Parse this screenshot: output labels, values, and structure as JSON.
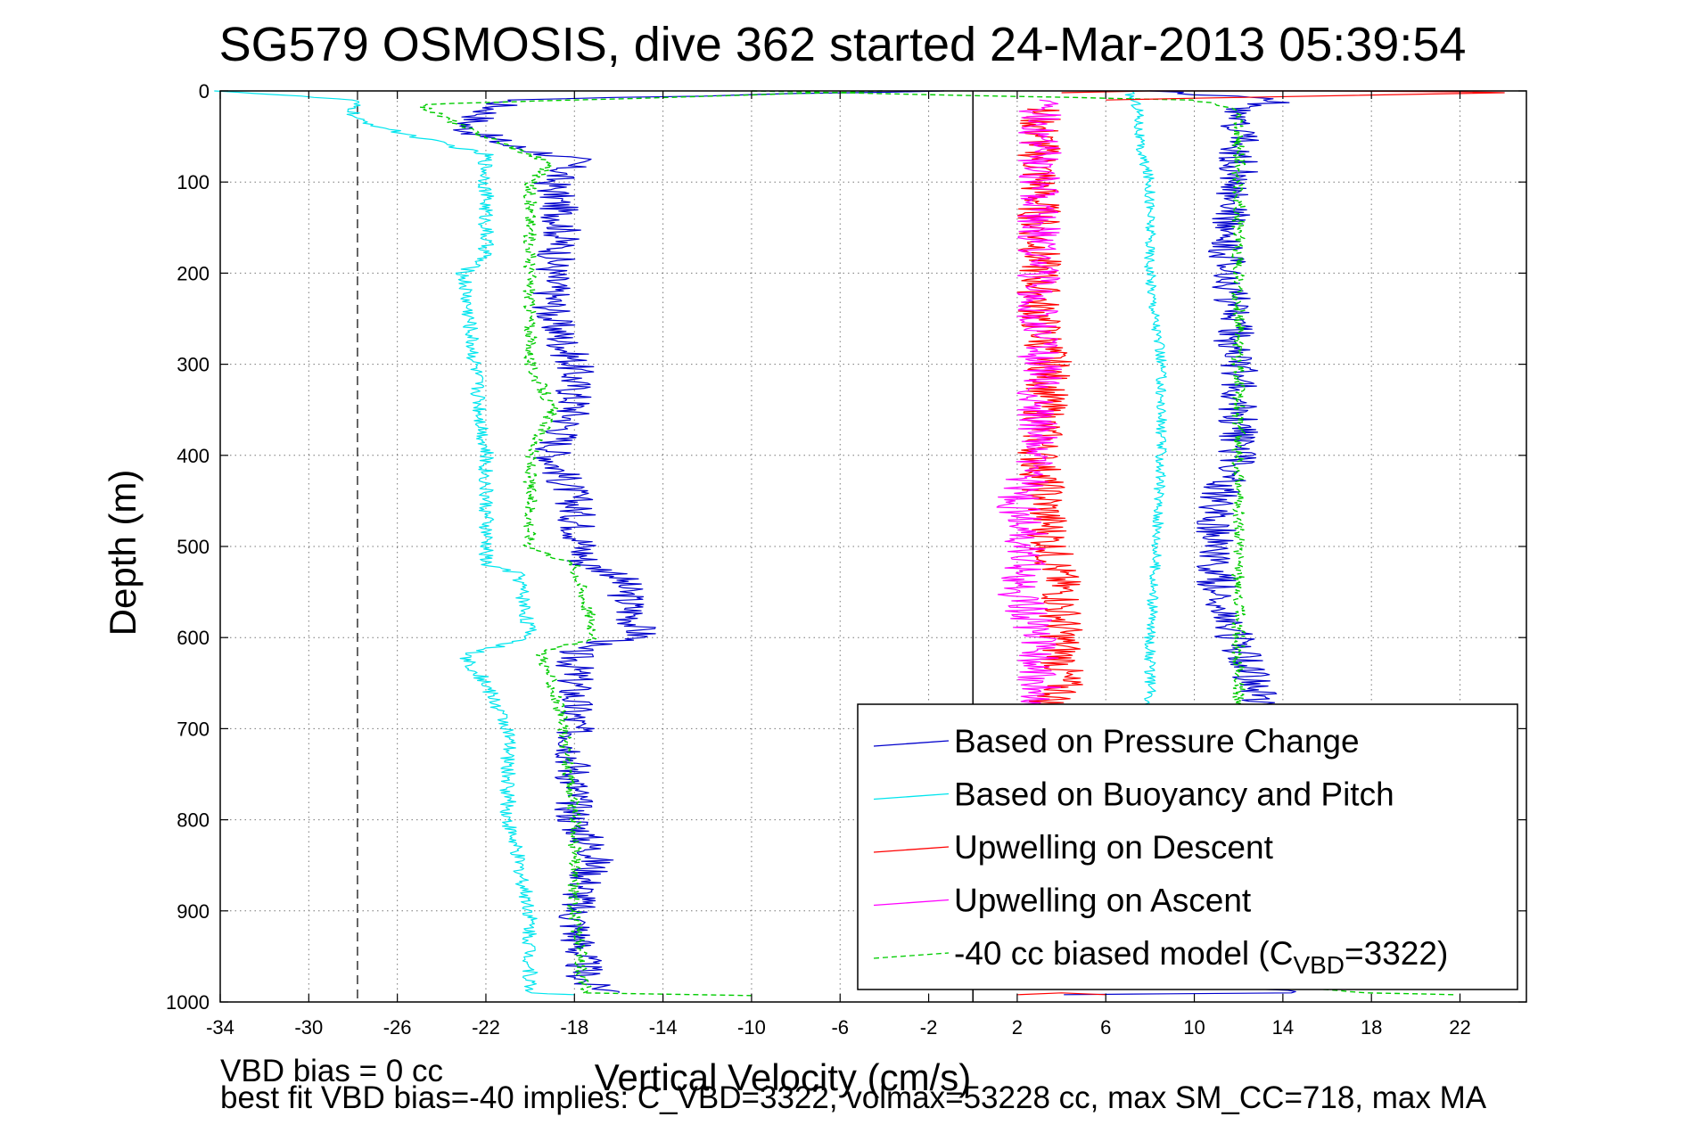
{
  "chart_data": {
    "type": "line",
    "title": "SG579 OSMOSIS, dive 362 started 24-Mar-2013 05:39:54",
    "xlabel": "Vertical Velocity (cm/s)",
    "ylabel": "Depth (m)",
    "xlim": [
      -34,
      25
    ],
    "ylim": [
      1000,
      0
    ],
    "y_reversed": true,
    "grid": true,
    "xticks": [
      -34,
      -30,
      -26,
      -22,
      -18,
      -14,
      -10,
      -6,
      -2,
      2,
      6,
      10,
      14,
      18,
      22
    ],
    "yticks": [
      0,
      100,
      200,
      300,
      400,
      500,
      600,
      700,
      800,
      900,
      1000
    ],
    "reference_lines": [
      {
        "axis": "x",
        "value": -27.8,
        "style": "dashed",
        "color": "#333333"
      },
      {
        "axis": "x",
        "value": 0,
        "style": "solid",
        "color": "#000000"
      }
    ],
    "legend": {
      "location": "lower-right",
      "entries": [
        {
          "label": "Based on Pressure Change",
          "color": "#0000cc",
          "style": "solid"
        },
        {
          "label": "Based on Buoyancy and Pitch",
          "color": "#00e5ee",
          "style": "solid"
        },
        {
          "label": "Upwelling on Descent",
          "color": "#ff0000",
          "style": "solid"
        },
        {
          "label": "Upwelling on Ascent",
          "color": "#ff00ff",
          "style": "solid"
        },
        {
          "label": "-40 cc biased model (C",
          "sub": "VBD",
          "suffix": "=3322)",
          "color": "#00cc00",
          "style": "dashed"
        }
      ]
    },
    "series": [
      {
        "key": "pressure_descent",
        "color": "#0000cc",
        "style": "solid",
        "width": 1.2,
        "noise": 0.9,
        "points": [
          [
            -2,
            0
          ],
          [
            -21,
            10
          ],
          [
            -23,
            40
          ],
          [
            -21,
            60
          ],
          [
            -18,
            75
          ],
          [
            -19,
            100
          ],
          [
            -18.5,
            150
          ],
          [
            -19,
            200
          ],
          [
            -19,
            250
          ],
          [
            -18,
            300
          ],
          [
            -18,
            350
          ],
          [
            -19,
            400
          ],
          [
            -18,
            450
          ],
          [
            -17.5,
            520
          ],
          [
            -16,
            530
          ],
          [
            -15,
            600
          ],
          [
            -18,
            610
          ],
          [
            -18,
            650
          ],
          [
            -18,
            700
          ],
          [
            -18,
            800
          ],
          [
            -17,
            840
          ],
          [
            -18,
            900
          ],
          [
            -17.5,
            980
          ],
          [
            -16,
            990
          ]
        ]
      },
      {
        "key": "buoyancy_descent",
        "color": "#00e5ee",
        "style": "solid",
        "width": 1.2,
        "noise": 0.35,
        "points": [
          [
            -34,
            0
          ],
          [
            -28,
            10
          ],
          [
            -28,
            30
          ],
          [
            -26,
            45
          ],
          [
            -22,
            70
          ],
          [
            -22,
            100
          ],
          [
            -22,
            180
          ],
          [
            -23,
            200
          ],
          [
            -22.5,
            300
          ],
          [
            -22,
            400
          ],
          [
            -22,
            500
          ],
          [
            -22,
            520
          ],
          [
            -20.5,
            530
          ],
          [
            -20,
            600
          ],
          [
            -23,
            620
          ],
          [
            -22,
            650
          ],
          [
            -21,
            700
          ],
          [
            -21,
            800
          ],
          [
            -20,
            900
          ],
          [
            -20,
            990
          ],
          [
            -18,
            992
          ]
        ]
      },
      {
        "key": "model_descent",
        "color": "#00cc00",
        "style": "dashed",
        "width": 1.4,
        "noise": 0.3,
        "points": [
          [
            -4,
            0
          ],
          [
            -25,
            15
          ],
          [
            -23,
            40
          ],
          [
            -21,
            60
          ],
          [
            -19,
            80
          ],
          [
            -20,
            100
          ],
          [
            -20,
            200
          ],
          [
            -20,
            300
          ],
          [
            -19,
            350
          ],
          [
            -20,
            400
          ],
          [
            -20,
            450
          ],
          [
            -20,
            500
          ],
          [
            -18,
            520
          ],
          [
            -17,
            600
          ],
          [
            -19.5,
            615
          ],
          [
            -19,
            650
          ],
          [
            -18.5,
            700
          ],
          [
            -18,
            800
          ],
          [
            -18,
            900
          ],
          [
            -17.5,
            990
          ],
          [
            -10,
            993
          ]
        ]
      },
      {
        "key": "pressure_ascent",
        "color": "#0000cc",
        "style": "solid",
        "width": 1.2,
        "noise": 0.9,
        "points": [
          [
            4,
            992
          ],
          [
            14,
            990
          ],
          [
            12,
            970
          ],
          [
            12,
            900
          ],
          [
            12,
            800
          ],
          [
            12.5,
            700
          ],
          [
            13,
            670
          ],
          [
            11,
            550
          ],
          [
            11,
            450
          ],
          [
            12,
            400
          ],
          [
            12,
            300
          ],
          [
            11.5,
            280
          ],
          [
            12,
            260
          ],
          [
            11.5,
            200
          ],
          [
            11.5,
            150
          ],
          [
            12,
            100
          ],
          [
            12,
            50
          ],
          [
            12,
            20
          ],
          [
            14,
            10
          ],
          [
            8,
            0
          ]
        ]
      },
      {
        "key": "buoyancy_ascent",
        "color": "#00e5ee",
        "style": "solid",
        "width": 1.2,
        "noise": 0.25,
        "points": [
          [
            7,
            0
          ],
          [
            7.5,
            20
          ],
          [
            7.5,
            60
          ],
          [
            8,
            100
          ],
          [
            8,
            150
          ],
          [
            8,
            200
          ],
          [
            8.5,
            300
          ],
          [
            8.5,
            350
          ],
          [
            8.5,
            400
          ],
          [
            8.3,
            500
          ],
          [
            8,
            600
          ],
          [
            8,
            650
          ],
          [
            8,
            680
          ]
        ]
      },
      {
        "key": "model_ascent",
        "color": "#00cc00",
        "style": "dashed",
        "width": 1.4,
        "noise": 0.3,
        "points": [
          [
            22,
            992
          ],
          [
            18,
            990
          ],
          [
            12,
            980
          ],
          [
            12,
            900
          ],
          [
            12,
            700
          ],
          [
            12,
            650
          ],
          [
            12,
            600
          ],
          [
            12,
            500
          ],
          [
            12,
            400
          ],
          [
            12,
            300
          ],
          [
            12,
            200
          ],
          [
            12,
            100
          ],
          [
            12,
            50
          ],
          [
            12,
            20
          ],
          [
            10,
            10
          ],
          [
            -10,
            0
          ]
        ]
      },
      {
        "key": "upwelling_descent",
        "color": "#ff0000",
        "style": "solid",
        "width": 1.2,
        "noise": 1.0,
        "points": [
          [
            3,
            20
          ],
          [
            3,
            100
          ],
          [
            3,
            200
          ],
          [
            3,
            250
          ],
          [
            3.5,
            300
          ],
          [
            3,
            400
          ],
          [
            3.5,
            500
          ],
          [
            4,
            550
          ],
          [
            4,
            600
          ],
          [
            4,
            660
          ],
          [
            3,
            680
          ]
        ]
      },
      {
        "key": "upwelling_ascent",
        "color": "#ff00ff",
        "style": "solid",
        "width": 1.2,
        "noise": 1.0,
        "points": [
          [
            3,
            680
          ],
          [
            3,
            600
          ],
          [
            2,
            550
          ],
          [
            2.5,
            500
          ],
          [
            2,
            450
          ],
          [
            3,
            400
          ],
          [
            3,
            350
          ],
          [
            3,
            300
          ],
          [
            3,
            250
          ],
          [
            3,
            200
          ],
          [
            3,
            150
          ],
          [
            3,
            100
          ],
          [
            3,
            50
          ],
          [
            3,
            10
          ]
        ]
      },
      {
        "key": "surface_red",
        "color": "#ff0000",
        "style": "solid",
        "width": 1.2,
        "noise": 0.0,
        "points": [
          [
            4,
            2
          ],
          [
            8,
            0
          ],
          [
            16,
            0
          ],
          [
            22,
            1
          ],
          [
            24,
            2
          ],
          [
            10,
            8
          ],
          [
            6,
            10
          ]
        ]
      },
      {
        "key": "bottom_red",
        "color": "#ff0000",
        "style": "solid",
        "width": 1.2,
        "noise": 0.0,
        "points": [
          [
            2,
            992
          ],
          [
            4,
            990
          ],
          [
            6,
            992
          ]
        ]
      }
    ]
  },
  "footer": {
    "line1": "VBD bias = 0 cc",
    "line2": "best fit VBD bias=-40 implies: C_VBD=3322, volmax=53228 cc, max SM_CC=718, max MA"
  }
}
